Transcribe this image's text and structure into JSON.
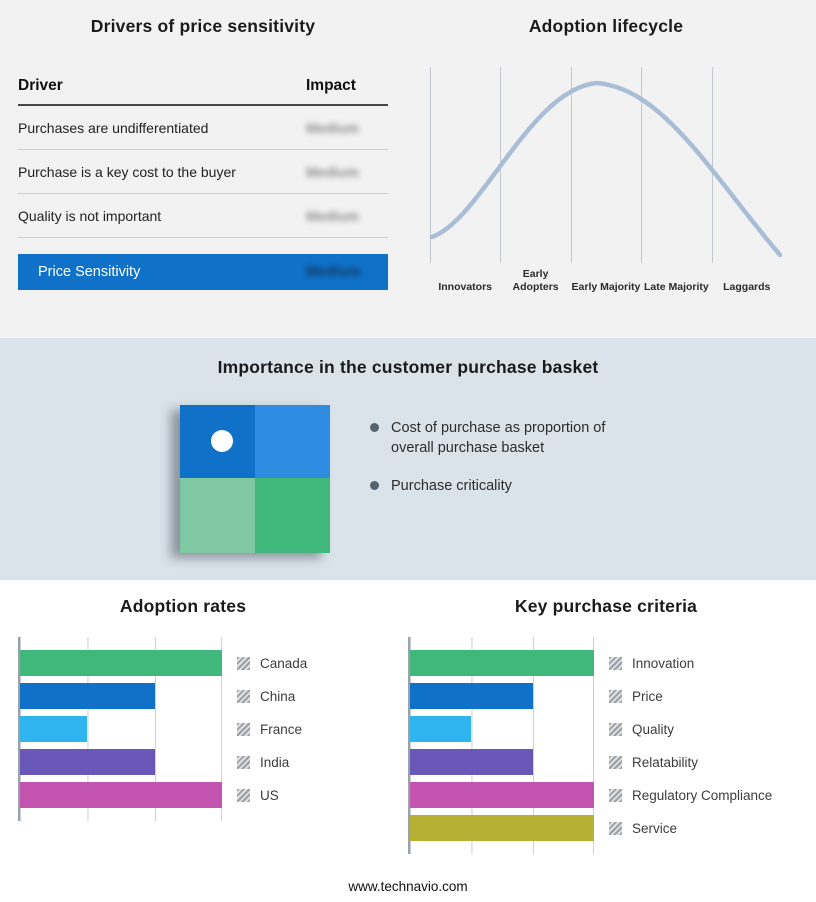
{
  "theme": {
    "corner_color": "#23305a",
    "top_bg": "#f2f2f3",
    "mid_bg": "#dae2ea",
    "bottom_bg": "#ffffff",
    "redacted_text_color": "#8c8c8c"
  },
  "footer": {
    "url": "www.technavio.com"
  },
  "basket_panel": {
    "title": "Importance in the customer purchase basket",
    "bullets": [
      "Cost of purchase as proportion of overall purchase basket",
      "Purchase criticality"
    ],
    "quadrant_colors": [
      "#0f71c8",
      "#2f8ce0",
      "#7fc8a3",
      "#41b87b"
    ],
    "marker_dot_color": "#ffffff"
  },
  "chart_data": [
    {
      "type": "table",
      "title": "Drivers of price sensitivity",
      "columns": [
        "Driver",
        "Impact"
      ],
      "rows": [
        [
          "Purchases are undifferentiated",
          "Medium"
        ],
        [
          "Purchase is a key cost to the buyer",
          "Medium"
        ],
        [
          "Quality is not important",
          "Medium"
        ],
        [
          "Price Sensitivity",
          "Medium"
        ]
      ],
      "highlight_row_bg": "#0f71c8",
      "notes": "Impact values are blurred/redacted in the source image; last row is a highlighted blue summary banner"
    },
    {
      "type": "line",
      "title": "Adoption lifecycle",
      "shape": "bell-curve",
      "categories": [
        "Innovators",
        "Early Adopters",
        "Early Majority",
        "Late Majority",
        "Laggards"
      ],
      "curve_color": "#a9bdd6",
      "grid": true,
      "xlabel": "",
      "ylabel": ""
    },
    {
      "type": "bar",
      "title": "Adoption rates",
      "orientation": "horizontal",
      "categories": [
        "Canada",
        "China",
        "France",
        "India",
        "US"
      ],
      "values": [
        100,
        67,
        33,
        67,
        100
      ],
      "xlim": [
        0,
        100
      ],
      "value_note": "No numeric axis labels shown; lengths estimated from gridlines at thirds of the axis",
      "colors": [
        "#41b87b",
        "#0f71c8",
        "#2eb5f0",
        "#6a58b8",
        "#c355b1"
      ],
      "grid": true,
      "legend_position": "right"
    },
    {
      "type": "bar",
      "title": "Key purchase criteria",
      "orientation": "horizontal",
      "categories": [
        "Innovation",
        "Price",
        "Quality",
        "Relatability",
        "Regulatory Compliance",
        "Service"
      ],
      "values": [
        100,
        67,
        33,
        67,
        100,
        100
      ],
      "xlim": [
        0,
        100
      ],
      "value_note": "No numeric axis labels shown; lengths estimated from gridlines at thirds of the axis",
      "colors": [
        "#41b87b",
        "#0f71c8",
        "#2eb5f0",
        "#6a58b8",
        "#c355b1",
        "#b6b135"
      ],
      "grid": true,
      "legend_position": "right"
    }
  ]
}
